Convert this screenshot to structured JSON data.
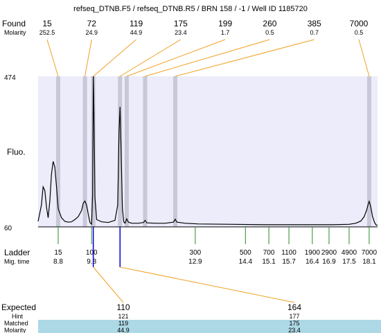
{
  "title": "refseq_DTNB.F5 / refseq_DTNB.R5 / BRN 158 / -1 / Well ID 1185720",
  "labels": {
    "found": "Found",
    "molarity": "Molarity",
    "fluo": "Fluo.",
    "ladder": "Ladder",
    "mig_time": "Mig. time",
    "expected": "Expected",
    "hint": "Hint",
    "matched": "Matched",
    "molarity_bottom": "Molarity"
  },
  "colors": {
    "plot_bg": "#ececfa",
    "band": "#c8c8d8",
    "found_line": "#f0a020",
    "ladder_tick": "#2a8a2a",
    "marker": "#0000cc",
    "trace": "#000000",
    "row_highlight": "#add8e6"
  },
  "chart_data": {
    "type": "line",
    "title": "refseq_DTNB.F5 / refseq_DTNB.R5 / BRN 158 / -1 / Well ID 1185720",
    "ylabel": "Fluo.",
    "ylim": [
      60,
      474
    ],
    "y_ticks": [
      "474",
      "60"
    ],
    "found_peaks": [
      {
        "size": "15",
        "molarity": "252.5",
        "time": 8.8
      },
      {
        "size": "72",
        "molarity": "24.9",
        "time": 9.6
      },
      {
        "size": "119",
        "molarity": "44.9",
        "time": 9.85
      },
      {
        "size": "175",
        "molarity": "23.4",
        "time": 10.65
      },
      {
        "size": "199",
        "molarity": "1.7",
        "time": 10.85
      },
      {
        "size": "260",
        "molarity": "0.5",
        "time": 11.4
      },
      {
        "size": "385",
        "molarity": "0.7",
        "time": 12.3
      },
      {
        "size": "7000",
        "molarity": "0.5",
        "time": 18.1
      }
    ],
    "ladder": [
      {
        "size": "15",
        "time": "8.8"
      },
      {
        "size": "100",
        "time": "9.8"
      },
      {
        "size": "300",
        "time": "12.9"
      },
      {
        "size": "500",
        "time": "14.4"
      },
      {
        "size": "700",
        "time": "15.1"
      },
      {
        "size": "1100",
        "time": "15.7"
      },
      {
        "size": "1900",
        "time": "16.4"
      },
      {
        "size": "2900",
        "time": "16.9"
      },
      {
        "size": "4900",
        "time": "17.5"
      },
      {
        "size": "7000",
        "time": "18.1"
      }
    ],
    "trace": [
      [
        8.2,
        75
      ],
      [
        8.3,
        120
      ],
      [
        8.35,
        170
      ],
      [
        8.4,
        160
      ],
      [
        8.45,
        115
      ],
      [
        8.5,
        85
      ],
      [
        8.55,
        130
      ],
      [
        8.6,
        205
      ],
      [
        8.65,
        240
      ],
      [
        8.7,
        225
      ],
      [
        8.75,
        170
      ],
      [
        8.8,
        110
      ],
      [
        8.9,
        85
      ],
      [
        9.0,
        75
      ],
      [
        9.1,
        73
      ],
      [
        9.2,
        74
      ],
      [
        9.3,
        80
      ],
      [
        9.4,
        88
      ],
      [
        9.5,
        105
      ],
      [
        9.55,
        125
      ],
      [
        9.6,
        131
      ],
      [
        9.65,
        120
      ],
      [
        9.7,
        95
      ],
      [
        9.75,
        72
      ],
      [
        9.8,
        67
      ],
      [
        9.83,
        150
      ],
      [
        9.85,
        474
      ],
      [
        9.87,
        380
      ],
      [
        9.9,
        140
      ],
      [
        9.95,
        80
      ],
      [
        10.1,
        74
      ],
      [
        10.3,
        72
      ],
      [
        10.5,
        78
      ],
      [
        10.58,
        120
      ],
      [
        10.62,
        320
      ],
      [
        10.65,
        390
      ],
      [
        10.68,
        280
      ],
      [
        10.72,
        110
      ],
      [
        10.76,
        74
      ],
      [
        10.8,
        70
      ],
      [
        10.85,
        82
      ],
      [
        10.9,
        73
      ],
      [
        11.0,
        70
      ],
      [
        11.2,
        70
      ],
      [
        11.35,
        72
      ],
      [
        11.4,
        78
      ],
      [
        11.45,
        71
      ],
      [
        11.7,
        70
      ],
      [
        12.0,
        70
      ],
      [
        12.25,
        73
      ],
      [
        12.3,
        81
      ],
      [
        12.35,
        73
      ],
      [
        12.6,
        70
      ],
      [
        13.0,
        68
      ],
      [
        14.0,
        67
      ],
      [
        15.0,
        66
      ],
      [
        16.0,
        66
      ],
      [
        17.0,
        66
      ],
      [
        17.5,
        67
      ],
      [
        17.7,
        70
      ],
      [
        17.85,
        76
      ],
      [
        17.95,
        88
      ],
      [
        18.02,
        105
      ],
      [
        18.07,
        122
      ],
      [
        18.1,
        130
      ],
      [
        18.14,
        118
      ],
      [
        18.2,
        88
      ],
      [
        18.26,
        72
      ],
      [
        18.3,
        66
      ],
      [
        18.35,
        64
      ]
    ],
    "expected": [
      {
        "size": "110",
        "hint": "121",
        "matched": "119",
        "molarity": "44.9",
        "time": 9.85
      },
      {
        "size": "164",
        "hint": "177",
        "matched": "175",
        "molarity": "23.4",
        "time": 10.65
      }
    ]
  }
}
